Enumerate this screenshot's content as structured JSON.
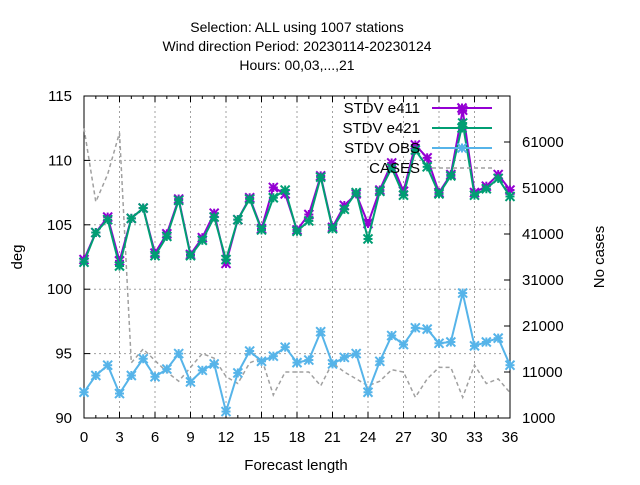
{
  "chart_data": {
    "type": "line",
    "title_lines": [
      "Selection: ALL using  1007 stations",
      "Wind direction   Period: 20230114-20230124",
      "Hours:  00,03,...,21"
    ],
    "xlabel": "Forecast length",
    "ylabel": "deg",
    "y2label": "No cases",
    "xlim": [
      0,
      36
    ],
    "ylim": [
      90,
      115
    ],
    "y2lim": [
      1000,
      71000
    ],
    "xticks": [
      0,
      3,
      6,
      9,
      12,
      15,
      18,
      21,
      24,
      27,
      30,
      33,
      36
    ],
    "yticks": [
      90,
      95,
      100,
      105,
      110,
      115
    ],
    "y2ticks": [
      1000,
      11000,
      21000,
      31000,
      41000,
      51000,
      61000
    ],
    "grid": true,
    "legend_position": "top-right",
    "x": [
      0,
      1,
      2,
      3,
      4,
      5,
      6,
      7,
      8,
      9,
      10,
      11,
      12,
      13,
      14,
      15,
      16,
      17,
      18,
      19,
      20,
      21,
      22,
      23,
      24,
      25,
      26,
      27,
      28,
      29,
      30,
      31,
      32,
      33,
      34,
      35,
      36
    ],
    "series": [
      {
        "name": "STDV e411",
        "color": "#9400d3",
        "axis": "y",
        "style": "line-points",
        "values": [
          102.3,
          104.4,
          105.6,
          102.2,
          105.5,
          106.3,
          102.8,
          104.3,
          107.0,
          102.7,
          104.0,
          105.9,
          102.0,
          105.4,
          107.1,
          104.7,
          107.9,
          107.4,
          104.6,
          105.8,
          108.8,
          104.8,
          106.5,
          107.4,
          105.1,
          107.7,
          109.8,
          107.6,
          111.2,
          110.2,
          107.5,
          108.9,
          113.9,
          107.5,
          108.0,
          108.9,
          107.7
        ]
      },
      {
        "name": "STDV e421",
        "color": "#009e73",
        "axis": "y",
        "style": "line-points",
        "values": [
          102.1,
          104.4,
          105.4,
          101.8,
          105.5,
          106.3,
          102.6,
          104.1,
          106.9,
          102.6,
          103.8,
          105.6,
          102.3,
          105.4,
          107.0,
          104.6,
          107.1,
          107.7,
          104.5,
          105.3,
          108.7,
          104.7,
          106.2,
          107.5,
          103.9,
          107.6,
          109.4,
          107.3,
          110.8,
          109.5,
          107.4,
          108.8,
          112.9,
          107.3,
          107.8,
          108.6,
          107.2
        ]
      },
      {
        "name": "STDV OBS",
        "color": "#56b4e9",
        "axis": "y",
        "style": "line-points",
        "values": [
          92.0,
          93.3,
          94.1,
          91.9,
          93.3,
          94.6,
          93.2,
          93.8,
          95.0,
          92.8,
          93.7,
          94.2,
          90.5,
          93.5,
          95.2,
          94.4,
          94.8,
          95.5,
          94.3,
          94.5,
          96.7,
          94.2,
          94.7,
          95.0,
          92.0,
          94.4,
          96.4,
          95.7,
          97.0,
          96.9,
          95.8,
          95.9,
          99.7,
          95.6,
          95.9,
          96.2,
          94.1
        ]
      },
      {
        "name": "CASES",
        "color": "#a0a0a0",
        "axis": "y2",
        "style": "dashed",
        "values": [
          64000,
          48000,
          54000,
          63000,
          13000,
          16000,
          13500,
          11000,
          9000,
          12000,
          15000,
          14000,
          10000,
          8500,
          13000,
          14000,
          6000,
          11000,
          11000,
          11000,
          8000,
          13000,
          11000,
          9500,
          8000,
          9000,
          11500,
          11000,
          5500,
          9500,
          12000,
          12000,
          5500,
          12500,
          8500,
          9500,
          6500
        ]
      }
    ]
  }
}
